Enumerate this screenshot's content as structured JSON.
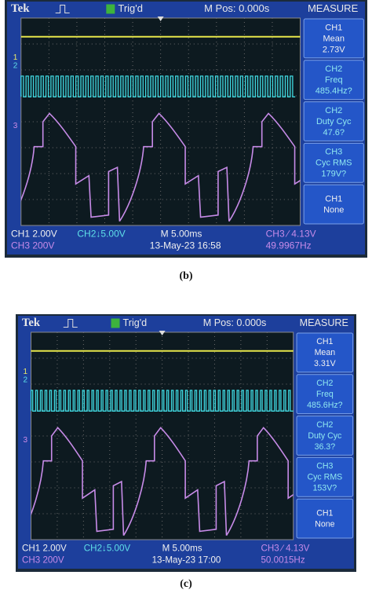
{
  "panels": [
    {
      "caption": "(b)",
      "header": {
        "brand": "Tek",
        "trigger": "Trig'd",
        "position": "M Pos: 0.000s",
        "menu": "MEASURE"
      },
      "markers": [
        "1",
        "2",
        "3"
      ],
      "measurements": [
        {
          "channel": "CH1",
          "label": "Mean",
          "value": "2.73V"
        },
        {
          "channel": "CH2",
          "label": "Freq",
          "value": "485.4Hz?"
        },
        {
          "channel": "CH2",
          "label": "Duty Cyc",
          "value": "47.6?"
        },
        {
          "channel": "CH3",
          "label": "Cyc RMS",
          "value": "179V?"
        },
        {
          "channel": "CH1",
          "label": "None"
        }
      ],
      "status": {
        "ch1": "CH1  2.00V",
        "ch3": "CH3  200V",
        "ch2": "CH2↓5.00V",
        "timebase": "M 5.00ms",
        "date": "13-May-23 16:58",
        "trigger_level": "CH3 ∕ 4.13V",
        "frequency": "49.9967Hz"
      }
    },
    {
      "caption": "(c)",
      "header": {
        "brand": "Tek",
        "trigger": "Trig'd",
        "position": "M Pos: 0.000s",
        "menu": "MEASURE"
      },
      "markers": [
        "1",
        "2",
        "3"
      ],
      "measurements": [
        {
          "channel": "CH1",
          "label": "Mean",
          "value": "3.31V"
        },
        {
          "channel": "CH2",
          "label": "Freq",
          "value": "485.6Hz?"
        },
        {
          "channel": "CH2",
          "label": "Duty Cyc",
          "value": "36.3?"
        },
        {
          "channel": "CH3",
          "label": "Cyc RMS",
          "value": "153V?"
        },
        {
          "channel": "CH1",
          "label": "None"
        }
      ],
      "status": {
        "ch1": "CH1  2.00V",
        "ch3": "CH3  200V",
        "ch2": "CH2↓5.00V",
        "timebase": "M 5.00ms",
        "date": "13-May-23 17:00",
        "trigger_level": "CH3 ∕ 4.13V",
        "frequency": "50.0015Hz"
      }
    }
  ]
}
